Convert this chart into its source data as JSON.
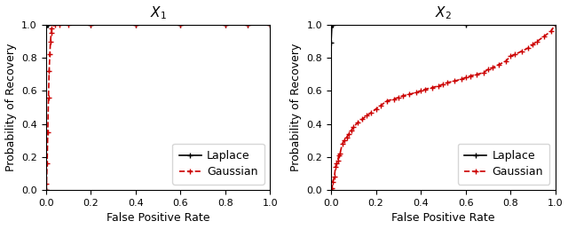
{
  "title1": "$X_1$",
  "title2": "$X_2$",
  "xlabel": "False Positive Rate",
  "ylabel": "Probability of Recovery",
  "xlim": [
    0.0,
    1.0
  ],
  "ylim": [
    0.0,
    1.0
  ],
  "plot1_laplace_x": [
    0.0,
    0.0,
    0.005,
    0.01,
    0.2,
    0.4,
    0.6,
    0.8,
    0.9,
    1.0
  ],
  "plot1_laplace_y": [
    0.0,
    1.0,
    1.0,
    1.0,
    1.0,
    1.0,
    1.0,
    1.0,
    1.0,
    1.0
  ],
  "plot1_gaussian_x": [
    0.0,
    0.003,
    0.006,
    0.009,
    0.012,
    0.015,
    0.018,
    0.021,
    0.024,
    0.027,
    0.04,
    0.06,
    0.1,
    0.2,
    0.4,
    0.6,
    0.8,
    0.9,
    1.0
  ],
  "plot1_gaussian_y": [
    0.0,
    0.04,
    0.16,
    0.35,
    0.56,
    0.72,
    0.82,
    0.9,
    0.95,
    0.98,
    1.0,
    1.0,
    1.0,
    1.0,
    1.0,
    1.0,
    1.0,
    1.0,
    1.0
  ],
  "plot2_laplace_x": [
    0.0,
    0.0,
    0.004,
    0.008,
    0.6,
    1.0
  ],
  "plot2_laplace_y": [
    0.0,
    0.89,
    1.0,
    1.0,
    1.0,
    1.0
  ],
  "plot2_gaussian_x": [
    0.0,
    0.004,
    0.008,
    0.015,
    0.02,
    0.025,
    0.03,
    0.035,
    0.04,
    0.05,
    0.06,
    0.07,
    0.08,
    0.09,
    0.1,
    0.12,
    0.14,
    0.16,
    0.18,
    0.2,
    0.22,
    0.25,
    0.28,
    0.3,
    0.32,
    0.35,
    0.38,
    0.4,
    0.42,
    0.45,
    0.48,
    0.5,
    0.52,
    0.55,
    0.58,
    0.6,
    0.62,
    0.65,
    0.68,
    0.7,
    0.72,
    0.75,
    0.78,
    0.8,
    0.82,
    0.85,
    0.88,
    0.9,
    0.92,
    0.95,
    0.98,
    1.0
  ],
  "plot2_gaussian_y": [
    0.0,
    0.01,
    0.05,
    0.08,
    0.14,
    0.16,
    0.18,
    0.21,
    0.22,
    0.28,
    0.3,
    0.32,
    0.34,
    0.36,
    0.38,
    0.41,
    0.43,
    0.45,
    0.47,
    0.49,
    0.51,
    0.54,
    0.55,
    0.56,
    0.57,
    0.58,
    0.59,
    0.6,
    0.61,
    0.62,
    0.63,
    0.64,
    0.65,
    0.66,
    0.67,
    0.68,
    0.69,
    0.7,
    0.71,
    0.73,
    0.74,
    0.76,
    0.78,
    0.81,
    0.82,
    0.84,
    0.86,
    0.88,
    0.9,
    0.93,
    0.96,
    1.0
  ],
  "laplace_color": "#000000",
  "gaussian_color": "#cc0000",
  "marker_size": 4,
  "line_width": 1.2,
  "legend_fontsize": 9,
  "tick_fontsize": 8,
  "label_fontsize": 9,
  "title_fontsize": 11
}
